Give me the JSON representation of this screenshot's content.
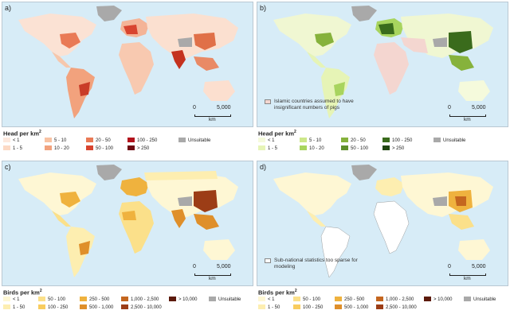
{
  "panels": [
    {
      "letter": "a)",
      "legend_title": "Head per km",
      "legend_title_sup": "2",
      "scale": {
        "zero": "0",
        "max": "5,000",
        "unit": "km"
      },
      "note": null,
      "legend": [
        {
          "label": "< 1",
          "color": "#fde9de"
        },
        {
          "label": "1 - 5",
          "color": "#fcd9c4"
        },
        {
          "label": "5 - 10",
          "color": "#f8c3a3"
        },
        {
          "label": "10 - 20",
          "color": "#f2a27d"
        },
        {
          "label": "20 - 50",
          "color": "#e97a56"
        },
        {
          "label": "50 - 100",
          "color": "#d8442f"
        },
        {
          "label": "100 - 250",
          "color": "#b2121c"
        },
        {
          "label": "> 250",
          "color": "#6e0a12"
        },
        {
          "label": "Unsuitable",
          "color": "#a9a9a9"
        }
      ]
    },
    {
      "letter": "b)",
      "legend_title": "Head per km",
      "legend_title_sup": "2",
      "scale": {
        "zero": "0",
        "max": "5,000",
        "unit": "km"
      },
      "note": {
        "text": "Islamic countries assumed to have insignificant numbers of pigs",
        "color": "#f4d6d0"
      },
      "legend": [
        {
          "label": "< 1",
          "color": "#f5fadc"
        },
        {
          "label": "1 - 5",
          "color": "#e6f4b6"
        },
        {
          "label": "5 - 10",
          "color": "#cde78a"
        },
        {
          "label": "10 - 20",
          "color": "#a8d45e"
        },
        {
          "label": "20 - 50",
          "color": "#86b23c"
        },
        {
          "label": "50 - 100",
          "color": "#5e8f2b"
        },
        {
          "label": "100 - 250",
          "color": "#3a6b1c"
        },
        {
          "label": "> 250",
          "color": "#1f4510"
        },
        {
          "label": "Unsuitable",
          "color": "#a9a9a9"
        }
      ]
    },
    {
      "letter": "c)",
      "legend_title": "Birds per km",
      "legend_title_sup": "2",
      "scale": {
        "zero": "0",
        "max": "5,000",
        "unit": "km"
      },
      "note": null,
      "legend": [
        {
          "label": "< 1",
          "color": "#fef7d4"
        },
        {
          "label": "1 - 50",
          "color": "#fdeeb0"
        },
        {
          "label": "50 - 100",
          "color": "#fbe08a"
        },
        {
          "label": "100 - 250",
          "color": "#f8cc5e"
        },
        {
          "label": "250 - 500",
          "color": "#efb23e"
        },
        {
          "label": "500 - 1,000",
          "color": "#df8f2a"
        },
        {
          "label": "1,000 - 2,500",
          "color": "#c4661f"
        },
        {
          "label": "2,500 - 10,000",
          "color": "#9c3d16"
        },
        {
          "label": "> 10,000",
          "color": "#5c1a0c"
        },
        {
          "label": "Unsuitable",
          "color": "#a9a9a9"
        }
      ]
    },
    {
      "letter": "d)",
      "legend_title": "Birds per km",
      "legend_title_sup": "2",
      "scale": {
        "zero": "0",
        "max": "5,000",
        "unit": "km"
      },
      "note": {
        "text": "Sub-national statistics too sparse for modeling",
        "color": "#ffffff"
      },
      "legend": [
        {
          "label": "< 1",
          "color": "#fef7d4"
        },
        {
          "label": "1 - 50",
          "color": "#fdeeb0"
        },
        {
          "label": "50 - 100",
          "color": "#fbe08a"
        },
        {
          "label": "100 - 250",
          "color": "#f8cc5e"
        },
        {
          "label": "250 - 500",
          "color": "#efb23e"
        },
        {
          "label": "500 - 1,000",
          "color": "#df8f2a"
        },
        {
          "label": "1,000 - 2,500",
          "color": "#c4661f"
        },
        {
          "label": "2,500 - 10,000",
          "color": "#9c3d16"
        },
        {
          "label": "> 10,000",
          "color": "#5c1a0c"
        },
        {
          "label": "Unsuitable",
          "color": "#a9a9a9"
        }
      ]
    }
  ],
  "ocean_color": "#d7ecf7"
}
